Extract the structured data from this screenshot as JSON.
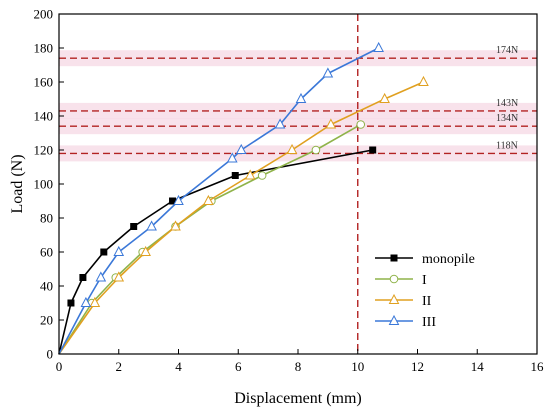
{
  "chart_data": {
    "type": "line",
    "xlabel": "Displacement (mm)",
    "ylabel": "Load (N)",
    "xlim": [
      0,
      16
    ],
    "ylim": [
      0,
      200
    ],
    "xticks": [
      0,
      2,
      4,
      6,
      8,
      10,
      12,
      14,
      16
    ],
    "yticks": [
      0,
      20,
      40,
      60,
      80,
      100,
      120,
      140,
      160,
      180,
      200
    ],
    "grid": false,
    "legend_position": "lower-right",
    "series": [
      {
        "name": "monopile",
        "color": "#000000",
        "marker": "filled-square",
        "x": [
          0,
          0.4,
          0.8,
          1.5,
          2.5,
          3.8,
          5.9,
          10.5
        ],
        "y": [
          0,
          30,
          45,
          60,
          75,
          90,
          105,
          120
        ]
      },
      {
        "name": "I",
        "color": "#8fb34a",
        "marker": "open-circle",
        "x": [
          0,
          1.1,
          1.9,
          2.8,
          3.9,
          5.1,
          6.8,
          8.6,
          10.1
        ],
        "y": [
          0,
          30,
          45,
          60,
          75,
          90,
          105,
          120,
          135
        ]
      },
      {
        "name": "II",
        "color": "#e0a020",
        "marker": "open-triangle",
        "x": [
          0,
          1.2,
          2.0,
          2.9,
          3.9,
          5.0,
          6.4,
          7.8,
          9.1,
          10.9,
          12.2
        ],
        "y": [
          0,
          30,
          45,
          60,
          75,
          90,
          105,
          120,
          135,
          150,
          160
        ]
      },
      {
        "name": "III",
        "color": "#3b78d8",
        "marker": "open-triangle",
        "x": [
          0,
          0.9,
          1.4,
          2.0,
          3.1,
          4.0,
          5.8,
          6.1,
          7.4,
          8.1,
          9.0,
          10.7
        ],
        "y": [
          0,
          30,
          45,
          60,
          75,
          90,
          115,
          120,
          135,
          150,
          165,
          180
        ]
      }
    ],
    "reference_lines": [
      {
        "value": 174,
        "label": "174N"
      },
      {
        "value": 143,
        "label": "143N"
      },
      {
        "value": 134,
        "label": "134N"
      },
      {
        "value": 118,
        "label": "118N"
      }
    ],
    "reference_vertical": 10,
    "reference_color": "#b22222",
    "band_color": "#f6d8e4"
  }
}
